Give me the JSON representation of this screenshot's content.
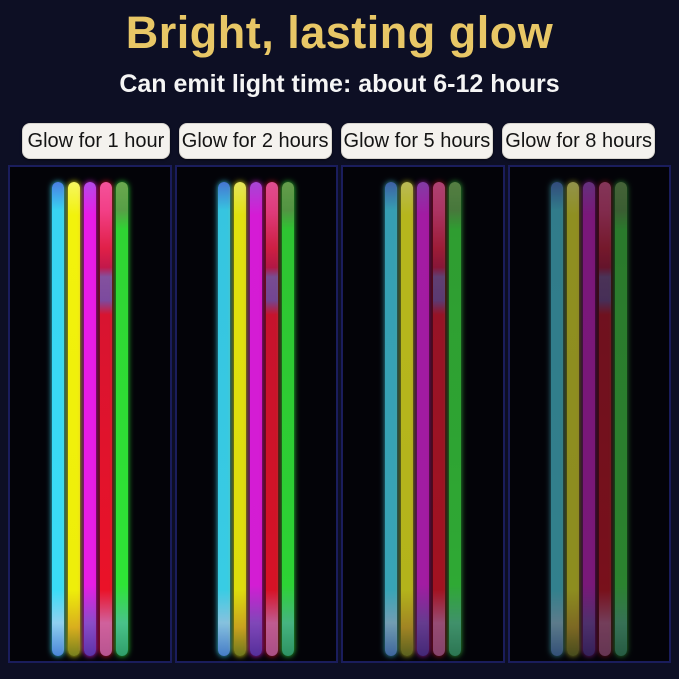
{
  "header": {
    "title": "Bright, lasting glow",
    "subtitle": "Can emit light time: about 6-12 hours"
  },
  "labels": [
    {
      "text": "Glow for 1 hour"
    },
    {
      "text": "Glow for 2 hours"
    },
    {
      "text": "Glow for 5 hours"
    },
    {
      "text": "Glow for 8 hours"
    }
  ],
  "colors": {
    "background": "#0d0f24",
    "title_color": "#e8c766",
    "subtitle_color": "#f5f5f5",
    "label_background": "#f4f2ee",
    "label_text": "#141414",
    "panel_background": "#030308",
    "panel_border": "#1a1d5c"
  },
  "panels": [
    {
      "name": "glow-1-hour",
      "duration_label": "Glow for 1 hour",
      "brightness": 1.0,
      "saturation": 1.0
    },
    {
      "name": "glow-2-hours",
      "duration_label": "Glow for 2 hours",
      "brightness": 0.93,
      "saturation": 0.98
    },
    {
      "name": "glow-5-hours",
      "duration_label": "Glow for 5 hours",
      "brightness": 0.76,
      "saturation": 0.88
    },
    {
      "name": "glow-8-hours",
      "duration_label": "Glow for 8 hours",
      "brightness": 0.6,
      "saturation": 0.8
    }
  ],
  "sticks": [
    {
      "name": "cyan",
      "main_color": "#38d8f4",
      "gradient_stops": [
        [
          "#4a7ee4",
          0
        ],
        [
          "#38d4f2",
          6
        ],
        [
          "#3adcf6",
          86
        ],
        [
          "#8fd0f0",
          93
        ],
        [
          "#4a86d8",
          100
        ]
      ]
    },
    {
      "name": "yellow",
      "main_color": "#f0f00c",
      "gradient_stops": [
        [
          "#f6f660",
          0
        ],
        [
          "#f2f20c",
          7
        ],
        [
          "#eeee0a",
          86
        ],
        [
          "#d8ae1e",
          94
        ],
        [
          "#77801e",
          100
        ]
      ]
    },
    {
      "name": "magenta",
      "main_color": "#e61ee6",
      "gradient_stops": [
        [
          "#b54ae8",
          0
        ],
        [
          "#e81ce8",
          7
        ],
        [
          "#e61ee6",
          85
        ],
        [
          "#8a4cc8",
          93
        ],
        [
          "#5c32a8",
          100
        ]
      ]
    },
    {
      "name": "red",
      "main_color": "#e61228",
      "gradient_stops": [
        [
          "#f4529a",
          0
        ],
        [
          "#f23f86",
          6
        ],
        [
          "#e02048",
          14
        ],
        [
          "#c2184a",
          18
        ],
        [
          "#83519e",
          20
        ],
        [
          "#7c4a9e",
          25
        ],
        [
          "#d81430",
          28
        ],
        [
          "#ea1228",
          86
        ],
        [
          "#d0619c",
          93
        ],
        [
          "#b85490",
          100
        ]
      ]
    },
    {
      "name": "green",
      "main_color": "#2ee436",
      "gradient_stops": [
        [
          "#6aa84e",
          0
        ],
        [
          "#57a046",
          6
        ],
        [
          "#2fd433",
          10
        ],
        [
          "#2ee436",
          85
        ],
        [
          "#49c289",
          93
        ],
        [
          "#2f9e6a",
          100
        ]
      ]
    }
  ]
}
